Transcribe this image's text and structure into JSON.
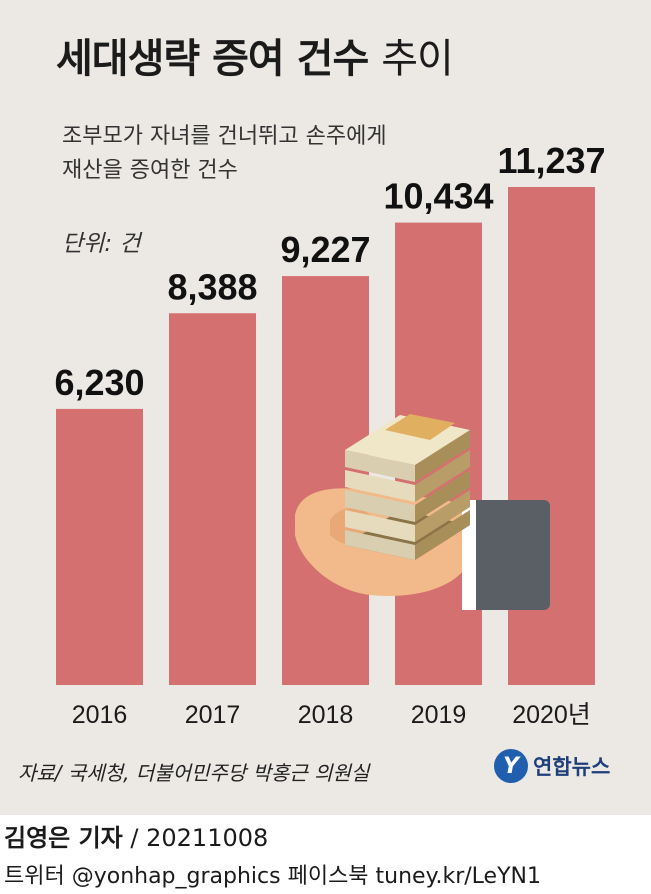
{
  "title": {
    "bold": "세대생략 증여 건수",
    "light": "추이"
  },
  "subtitle": [
    "조부모가 자녀를 건너뛰고 손주에게",
    "재산을 증여한 건수"
  ],
  "unit": "단위: 건",
  "chart_data": {
    "type": "bar",
    "title": "세대생략 증여 건수 추이",
    "categories": [
      "2016",
      "2017",
      "2018",
      "2019",
      "2020년"
    ],
    "values": [
      6230,
      8388,
      9227,
      10434,
      11237
    ],
    "value_labels": [
      "6,230",
      "8,388",
      "9,227",
      "10,434",
      "11,237"
    ],
    "bar_color": "#d4706f",
    "ylim": [
      0,
      11237
    ],
    "grid": false,
    "legend": "none"
  },
  "source": "자료/ 국세청, 더불어민주당 박홍근 의원실",
  "logo": {
    "mark": "Y",
    "text": "연합뉴스",
    "color": "#1f5fae"
  },
  "credit": {
    "name": "김영은 기자",
    "date": "/ 20211008"
  },
  "social": "트위터 @yonhap_graphics  페이스북 tuney.kr/LeYN1"
}
